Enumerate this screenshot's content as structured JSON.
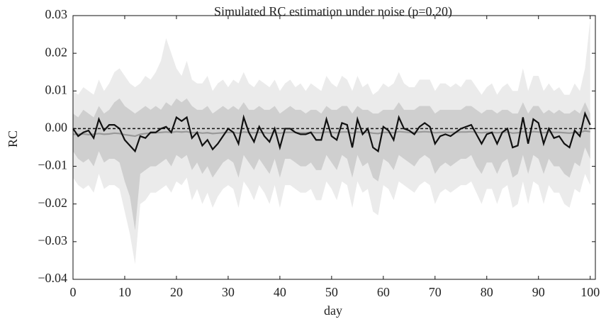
{
  "chart_data": {
    "type": "line",
    "title": "Simulated RC estimation under noise (p=0.20)",
    "xlabel": "day",
    "ylabel": "RC",
    "xlim": [
      0,
      101
    ],
    "ylim": [
      -0.04,
      0.03
    ],
    "xticks": [
      0,
      10,
      20,
      30,
      40,
      50,
      60,
      70,
      80,
      90,
      100
    ],
    "yticks": [
      {
        "value": -0.04,
        "label": "−0.04"
      },
      {
        "value": -0.03,
        "label": "−0.03"
      },
      {
        "value": -0.02,
        "label": "−0.02"
      },
      {
        "value": -0.01,
        "label": "−0.01"
      },
      {
        "value": 0,
        "label": "0.00"
      },
      0.01,
      0.02,
      0.03
    ],
    "grid": false,
    "reference_y": 0,
    "x": [
      0,
      1,
      2,
      3,
      4,
      5,
      6,
      7,
      8,
      9,
      10,
      11,
      12,
      13,
      14,
      15,
      16,
      17,
      18,
      19,
      20,
      21,
      22,
      23,
      24,
      25,
      26,
      27,
      28,
      29,
      30,
      31,
      32,
      33,
      34,
      35,
      36,
      37,
      38,
      39,
      40,
      41,
      42,
      43,
      44,
      45,
      46,
      47,
      48,
      49,
      50,
      51,
      52,
      53,
      54,
      55,
      56,
      57,
      58,
      59,
      60,
      61,
      62,
      63,
      64,
      65,
      66,
      67,
      68,
      69,
      70,
      71,
      72,
      73,
      74,
      75,
      76,
      77,
      78,
      79,
      80,
      81,
      82,
      83,
      84,
      85,
      86,
      87,
      88,
      89,
      90,
      91,
      92,
      93,
      94,
      95,
      96,
      97,
      98,
      99,
      100
    ],
    "bands": [
      {
        "color": "#ebebeb",
        "upper": [
          0.01,
          0.009,
          0.011,
          0.01,
          0.009,
          0.013,
          0.01,
          0.012,
          0.015,
          0.016,
          0.014,
          0.012,
          0.011,
          0.012,
          0.014,
          0.013,
          0.015,
          0.018,
          0.024,
          0.02,
          0.016,
          0.014,
          0.018,
          0.013,
          0.012,
          0.012,
          0.014,
          0.01,
          0.012,
          0.013,
          0.011,
          0.013,
          0.012,
          0.015,
          0.012,
          0.011,
          0.013,
          0.012,
          0.011,
          0.013,
          0.01,
          0.012,
          0.013,
          0.011,
          0.012,
          0.01,
          0.012,
          0.011,
          0.01,
          0.014,
          0.012,
          0.011,
          0.014,
          0.013,
          0.01,
          0.014,
          0.011,
          0.012,
          0.009,
          0.01,
          0.012,
          0.011,
          0.012,
          0.015,
          0.012,
          0.011,
          0.011,
          0.013,
          0.013,
          0.013,
          0.01,
          0.012,
          0.012,
          0.011,
          0.012,
          0.011,
          0.013,
          0.013,
          0.011,
          0.009,
          0.011,
          0.012,
          0.009,
          0.011,
          0.012,
          0.01,
          0.01,
          0.016,
          0.01,
          0.014,
          0.014,
          0.01,
          0.012,
          0.01,
          0.011,
          0.009,
          0.009,
          0.012,
          0.01,
          0.016,
          0.029
        ],
        "lower": [
          -0.013,
          -0.015,
          -0.016,
          -0.015,
          -0.017,
          -0.012,
          -0.016,
          -0.015,
          -0.015,
          -0.016,
          -0.022,
          -0.028,
          -0.036,
          -0.02,
          -0.019,
          -0.017,
          -0.017,
          -0.016,
          -0.015,
          -0.017,
          -0.014,
          -0.015,
          -0.013,
          -0.019,
          -0.016,
          -0.02,
          -0.017,
          -0.021,
          -0.018,
          -0.016,
          -0.015,
          -0.016,
          -0.021,
          -0.014,
          -0.016,
          -0.019,
          -0.015,
          -0.017,
          -0.02,
          -0.015,
          -0.021,
          -0.015,
          -0.015,
          -0.016,
          -0.017,
          -0.017,
          -0.016,
          -0.019,
          -0.019,
          -0.014,
          -0.016,
          -0.019,
          -0.014,
          -0.015,
          -0.021,
          -0.014,
          -0.017,
          -0.016,
          -0.022,
          -0.023,
          -0.015,
          -0.016,
          -0.019,
          -0.014,
          -0.015,
          -0.016,
          -0.017,
          -0.015,
          -0.014,
          -0.015,
          -0.02,
          -0.017,
          -0.016,
          -0.017,
          -0.016,
          -0.015,
          -0.015,
          -0.014,
          -0.017,
          -0.02,
          -0.016,
          -0.016,
          -0.02,
          -0.016,
          -0.015,
          -0.021,
          -0.02,
          -0.014,
          -0.02,
          -0.014,
          -0.015,
          -0.02,
          -0.015,
          -0.017,
          -0.017,
          -0.02,
          -0.021,
          -0.016,
          -0.017,
          -0.012,
          -0.015
        ]
      },
      {
        "color": "#cfcfcf",
        "upper": [
          0.004,
          0.003,
          0.005,
          0.004,
          0.003,
          0.006,
          0.004,
          0.005,
          0.007,
          0.008,
          0.006,
          0.005,
          0.004,
          0.005,
          0.006,
          0.005,
          0.006,
          0.005,
          0.007,
          0.006,
          0.008,
          0.007,
          0.008,
          0.006,
          0.005,
          0.005,
          0.006,
          0.004,
          0.005,
          0.006,
          0.005,
          0.006,
          0.005,
          0.007,
          0.005,
          0.005,
          0.006,
          0.005,
          0.005,
          0.006,
          0.004,
          0.005,
          0.006,
          0.005,
          0.005,
          0.004,
          0.005,
          0.005,
          0.004,
          0.006,
          0.005,
          0.005,
          0.006,
          0.006,
          0.004,
          0.006,
          0.005,
          0.005,
          0.004,
          0.004,
          0.005,
          0.005,
          0.005,
          0.007,
          0.005,
          0.005,
          0.005,
          0.006,
          0.006,
          0.006,
          0.004,
          0.005,
          0.005,
          0.005,
          0.005,
          0.005,
          0.006,
          0.006,
          0.005,
          0.004,
          0.005,
          0.005,
          0.004,
          0.005,
          0.005,
          0.004,
          0.004,
          0.007,
          0.004,
          0.006,
          0.006,
          0.004,
          0.005,
          0.004,
          0.005,
          0.004,
          0.004,
          0.005,
          0.004,
          0.007,
          0.004
        ],
        "lower": [
          -0.006,
          -0.008,
          -0.009,
          -0.008,
          -0.01,
          -0.006,
          -0.009,
          -0.008,
          -0.008,
          -0.009,
          -0.014,
          -0.018,
          -0.027,
          -0.012,
          -0.011,
          -0.01,
          -0.01,
          -0.009,
          -0.008,
          -0.01,
          -0.007,
          -0.008,
          -0.007,
          -0.011,
          -0.009,
          -0.012,
          -0.01,
          -0.013,
          -0.011,
          -0.009,
          -0.008,
          -0.009,
          -0.013,
          -0.007,
          -0.009,
          -0.011,
          -0.008,
          -0.01,
          -0.012,
          -0.008,
          -0.013,
          -0.008,
          -0.008,
          -0.009,
          -0.01,
          -0.01,
          -0.009,
          -0.011,
          -0.011,
          -0.007,
          -0.009,
          -0.011,
          -0.007,
          -0.008,
          -0.013,
          -0.007,
          -0.01,
          -0.009,
          -0.013,
          -0.014,
          -0.008,
          -0.009,
          -0.011,
          -0.007,
          -0.008,
          -0.009,
          -0.01,
          -0.008,
          -0.007,
          -0.008,
          -0.012,
          -0.01,
          -0.009,
          -0.01,
          -0.009,
          -0.008,
          -0.008,
          -0.007,
          -0.01,
          -0.012,
          -0.009,
          -0.009,
          -0.012,
          -0.009,
          -0.008,
          -0.013,
          -0.012,
          -0.007,
          -0.012,
          -0.007,
          -0.008,
          -0.012,
          -0.008,
          -0.01,
          -0.01,
          -0.012,
          -0.013,
          -0.009,
          -0.01,
          -0.005,
          -0.008
        ]
      }
    ],
    "series": [
      {
        "color": "#999999",
        "values": [
          -0.0015,
          -0.0015,
          -0.0014,
          -0.0016,
          -0.0015,
          -0.0013,
          -0.0015,
          -0.0014,
          -0.0012,
          -0.0013,
          -0.0016,
          -0.0018,
          -0.002,
          -0.0015,
          -0.0013,
          -0.0012,
          -0.0011,
          -0.001,
          -0.0009,
          -0.001,
          -0.0008,
          -0.0009,
          -0.0008,
          -0.0011,
          -0.001,
          -0.0012,
          -0.0011,
          -0.0013,
          -0.0012,
          -0.0011,
          -0.001,
          -0.001,
          -0.0012,
          -0.0009,
          -0.001,
          -0.0011,
          -0.001,
          -0.0011,
          -0.0012,
          -0.001,
          -0.0012,
          -0.001,
          -0.001,
          -0.001,
          -0.0011,
          -0.0011,
          -0.001,
          -0.0011,
          -0.0011,
          -0.0009,
          -0.001,
          -0.0011,
          -0.0009,
          -0.0009,
          -0.0012,
          -0.0009,
          -0.001,
          -0.001,
          -0.0012,
          -0.0013,
          -0.001,
          -0.001,
          -0.0011,
          -0.0008,
          -0.0009,
          -0.001,
          -0.001,
          -0.0009,
          -0.0008,
          -0.0009,
          -0.0011,
          -0.001,
          -0.001,
          -0.001,
          -0.001,
          -0.0009,
          -0.0009,
          -0.0008,
          -0.001,
          -0.0011,
          -0.001,
          -0.001,
          -0.0011,
          -0.001,
          -0.0009,
          -0.0012,
          -0.0011,
          -0.0008,
          -0.0011,
          -0.0008,
          -0.0009,
          -0.0011,
          -0.0009,
          -0.001,
          -0.001,
          -0.0011,
          -0.0012,
          -0.001,
          -0.001,
          -0.0006,
          -0.0008
        ]
      },
      {
        "color": "#111111",
        "values": [
          0,
          -0.002,
          -0.001,
          -0.0005,
          -0.0025,
          0.0025,
          -0.0005,
          0.001,
          0.001,
          0,
          -0.003,
          -0.0045,
          -0.006,
          -0.002,
          -0.0025,
          -0.001,
          -0.001,
          0,
          0.0005,
          -0.001,
          0.003,
          0.002,
          0.003,
          -0.0025,
          -0.001,
          -0.0045,
          -0.003,
          -0.0055,
          -0.004,
          -0.002,
          0,
          -0.001,
          -0.004,
          0.003,
          -0.001,
          -0.0035,
          0.0005,
          -0.002,
          -0.0035,
          0,
          -0.005,
          0,
          0,
          -0.001,
          -0.0015,
          -0.0015,
          -0.001,
          -0.003,
          -0.003,
          0.0025,
          -0.002,
          -0.003,
          0.0015,
          0.001,
          -0.005,
          0.0025,
          -0.0015,
          0,
          -0.005,
          -0.006,
          0.0005,
          -0.0005,
          -0.003,
          0.003,
          0,
          -0.0005,
          -0.0015,
          0.0005,
          0.0015,
          0.0005,
          -0.004,
          -0.002,
          -0.0015,
          -0.002,
          -0.001,
          0,
          0.0005,
          0.001,
          -0.0015,
          -0.004,
          -0.0015,
          -0.001,
          -0.004,
          -0.001,
          0,
          -0.005,
          -0.0045,
          0.003,
          -0.004,
          0.0025,
          0.0015,
          -0.004,
          0,
          -0.0025,
          -0.002,
          -0.004,
          -0.005,
          -0.0005,
          -0.002,
          0.004,
          0.001
        ]
      }
    ]
  }
}
